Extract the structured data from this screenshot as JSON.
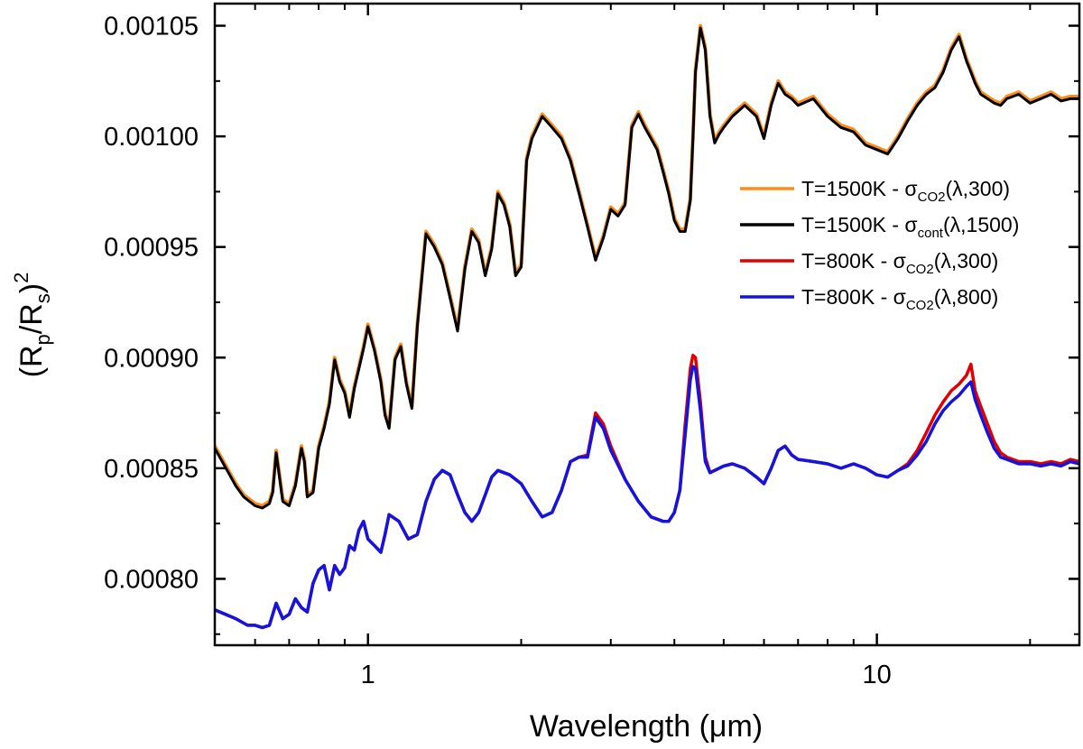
{
  "chart_data": {
    "type": "line",
    "xlabel": "Wavelength (μm)",
    "ylabel_parts": {
      "open": "(R",
      "sub1": "p",
      "mid": "/R",
      "sub2": "s",
      "close": ")",
      "sup": "2"
    },
    "x_scale": "log",
    "xlim": [
      0.5,
      25
    ],
    "ylim": [
      0.00077,
      0.00106
    ],
    "x_ticks": [
      1,
      10
    ],
    "x_tick_labels": [
      "1",
      "10"
    ],
    "y_ticks": [
      0.0008,
      0.00085,
      0.0009,
      0.00095,
      0.001,
      0.00105
    ],
    "y_tick_labels": [
      "0.00080",
      "0.00085",
      "0.00090",
      "0.00095",
      "0.00100",
      "0.00105"
    ],
    "grid": false,
    "legend_position": "right",
    "series": [
      {
        "name": "T=1500K - σCO2(λ,300)",
        "legend": {
          "pre": "T=1500K - σ",
          "sub": "CO2",
          "post": "(λ,300)"
        },
        "color": "#ff8c1a",
        "x": [
          0.5,
          0.55,
          0.57,
          0.6,
          0.62,
          0.64,
          0.65,
          0.66,
          0.68,
          0.7,
          0.72,
          0.74,
          0.75,
          0.76,
          0.78,
          0.8,
          0.82,
          0.84,
          0.86,
          0.88,
          0.9,
          0.92,
          0.94,
          0.96,
          0.98,
          1.0,
          1.03,
          1.06,
          1.08,
          1.1,
          1.13,
          1.16,
          1.19,
          1.22,
          1.25,
          1.3,
          1.35,
          1.4,
          1.45,
          1.5,
          1.55,
          1.6,
          1.65,
          1.7,
          1.75,
          1.8,
          1.85,
          1.9,
          1.95,
          2.0,
          2.05,
          2.1,
          2.2,
          2.3,
          2.4,
          2.5,
          2.6,
          2.7,
          2.8,
          2.9,
          3.0,
          3.1,
          3.2,
          3.3,
          3.4,
          3.5,
          3.6,
          3.7,
          3.8,
          3.9,
          4.0,
          4.1,
          4.2,
          4.3,
          4.35,
          4.4,
          4.5,
          4.6,
          4.7,
          4.8,
          4.9,
          5.0,
          5.2,
          5.5,
          5.8,
          6.0,
          6.2,
          6.4,
          6.6,
          6.8,
          7.0,
          7.5,
          8.0,
          8.5,
          9.0,
          9.5,
          10.0,
          10.5,
          11.0,
          11.5,
          12.0,
          12.5,
          13.0,
          13.5,
          14.0,
          14.5,
          15.0,
          15.3,
          15.6,
          16.0,
          16.5,
          17.0,
          17.5,
          18.0,
          19.0,
          20.0,
          21.0,
          22.0,
          23.0,
          24.0,
          25.0
        ],
        "y": [
          0.00086,
          0.000843,
          0.000838,
          0.000834,
          0.000833,
          0.000835,
          0.00084,
          0.000858,
          0.000836,
          0.000834,
          0.000843,
          0.00086,
          0.000854,
          0.000838,
          0.00084,
          0.00086,
          0.000869,
          0.00088,
          0.0009,
          0.00089,
          0.000885,
          0.000874,
          0.000887,
          0.000896,
          0.000905,
          0.000915,
          0.000904,
          0.00089,
          0.000875,
          0.000869,
          0.0009,
          0.000906,
          0.000889,
          0.000878,
          0.000915,
          0.000957,
          0.000951,
          0.000943,
          0.000928,
          0.000913,
          0.000941,
          0.000958,
          0.000953,
          0.000938,
          0.00095,
          0.000975,
          0.00097,
          0.00096,
          0.000938,
          0.000942,
          0.00099,
          0.001,
          0.00101,
          0.001005,
          0.001,
          0.00099,
          0.000975,
          0.00096,
          0.000945,
          0.000955,
          0.000968,
          0.000965,
          0.00097,
          0.001005,
          0.001011,
          0.001005,
          0.001,
          0.000995,
          0.000985,
          0.000975,
          0.000963,
          0.000958,
          0.000958,
          0.000972,
          0.001,
          0.00103,
          0.00105,
          0.00104,
          0.00101,
          0.000998,
          0.001002,
          0.001005,
          0.00101,
          0.001015,
          0.00101,
          0.001,
          0.001015,
          0.001025,
          0.00102,
          0.001018,
          0.001015,
          0.001018,
          0.00101,
          0.001005,
          0.001003,
          0.000997,
          0.000995,
          0.000993,
          0.001,
          0.001008,
          0.001015,
          0.00102,
          0.001023,
          0.00103,
          0.00104,
          0.001046,
          0.001035,
          0.00103,
          0.001025,
          0.00102,
          0.001018,
          0.001016,
          0.001015,
          0.001018,
          0.00102,
          0.001016,
          0.001018,
          0.00102,
          0.001017,
          0.001018,
          0.001018
        ],
        "width": 4
      },
      {
        "name": "T=1500K - σcont(λ,1500)",
        "legend": {
          "pre": "T=1500K - σ",
          "sub": "cont",
          "post": "(λ,1500)"
        },
        "color": "#000000",
        "x": [
          0.5,
          0.55,
          0.57,
          0.6,
          0.62,
          0.64,
          0.65,
          0.66,
          0.68,
          0.7,
          0.72,
          0.74,
          0.75,
          0.76,
          0.78,
          0.8,
          0.82,
          0.84,
          0.86,
          0.88,
          0.9,
          0.92,
          0.94,
          0.96,
          0.98,
          1.0,
          1.03,
          1.06,
          1.08,
          1.1,
          1.13,
          1.16,
          1.19,
          1.22,
          1.25,
          1.3,
          1.35,
          1.4,
          1.45,
          1.5,
          1.55,
          1.6,
          1.65,
          1.7,
          1.75,
          1.8,
          1.85,
          1.9,
          1.95,
          2.0,
          2.05,
          2.1,
          2.2,
          2.3,
          2.4,
          2.5,
          2.6,
          2.7,
          2.8,
          2.9,
          3.0,
          3.1,
          3.2,
          3.3,
          3.4,
          3.5,
          3.6,
          3.7,
          3.8,
          3.9,
          4.0,
          4.1,
          4.2,
          4.3,
          4.35,
          4.4,
          4.5,
          4.6,
          4.7,
          4.8,
          4.9,
          5.0,
          5.2,
          5.5,
          5.8,
          6.0,
          6.2,
          6.4,
          6.6,
          6.8,
          7.0,
          7.5,
          8.0,
          8.5,
          9.0,
          9.5,
          10.0,
          10.5,
          11.0,
          11.5,
          12.0,
          12.5,
          13.0,
          13.5,
          14.0,
          14.5,
          15.0,
          15.3,
          15.6,
          16.0,
          16.5,
          17.0,
          17.5,
          18.0,
          19.0,
          20.0,
          21.0,
          22.0,
          23.0,
          24.0,
          25.0
        ],
        "y": [
          0.000859,
          0.000842,
          0.000837,
          0.000833,
          0.000832,
          0.000834,
          0.000839,
          0.000857,
          0.000835,
          0.000833,
          0.000842,
          0.000859,
          0.000853,
          0.000837,
          0.000839,
          0.000859,
          0.000868,
          0.000879,
          0.000899,
          0.000889,
          0.000884,
          0.000873,
          0.000886,
          0.000895,
          0.000904,
          0.000914,
          0.000903,
          0.000889,
          0.000874,
          0.000868,
          0.000899,
          0.000905,
          0.000888,
          0.000877,
          0.000914,
          0.000956,
          0.00095,
          0.000942,
          0.000927,
          0.000912,
          0.00094,
          0.000957,
          0.000952,
          0.000937,
          0.000949,
          0.000974,
          0.000969,
          0.000959,
          0.000937,
          0.000941,
          0.000989,
          0.000999,
          0.001009,
          0.001004,
          0.000999,
          0.000989,
          0.000974,
          0.000959,
          0.000944,
          0.000954,
          0.000967,
          0.000964,
          0.000969,
          0.001004,
          0.00101,
          0.001004,
          0.000999,
          0.000994,
          0.000984,
          0.000974,
          0.000962,
          0.000957,
          0.000957,
          0.000971,
          0.000999,
          0.001029,
          0.001049,
          0.001039,
          0.001009,
          0.000997,
          0.001001,
          0.001004,
          0.001009,
          0.001014,
          0.001009,
          0.000999,
          0.001014,
          0.001024,
          0.001019,
          0.001017,
          0.001014,
          0.001017,
          0.001009,
          0.001004,
          0.001002,
          0.000996,
          0.000994,
          0.000992,
          0.000999,
          0.001007,
          0.001014,
          0.001019,
          0.001022,
          0.001029,
          0.001039,
          0.001045,
          0.001034,
          0.001029,
          0.001024,
          0.001019,
          0.001017,
          0.001015,
          0.001014,
          0.001017,
          0.001019,
          0.001015,
          0.001017,
          0.001019,
          0.001016,
          0.001017,
          0.001017
        ],
        "width": 3
      },
      {
        "name": "T=800K - σCO2(λ,300)",
        "legend": {
          "pre": "T=800K - σ",
          "sub": "CO2",
          "post": "(λ,300)"
        },
        "color": "#e00000",
        "x": [
          0.5,
          0.55,
          0.58,
          0.6,
          0.62,
          0.64,
          0.66,
          0.68,
          0.7,
          0.72,
          0.74,
          0.76,
          0.78,
          0.8,
          0.82,
          0.84,
          0.86,
          0.88,
          0.9,
          0.92,
          0.94,
          0.96,
          0.98,
          1.0,
          1.03,
          1.06,
          1.08,
          1.1,
          1.15,
          1.2,
          1.25,
          1.3,
          1.35,
          1.4,
          1.45,
          1.5,
          1.55,
          1.6,
          1.65,
          1.7,
          1.75,
          1.8,
          1.9,
          2.0,
          2.1,
          2.2,
          2.3,
          2.4,
          2.5,
          2.6,
          2.7,
          2.8,
          2.9,
          3.0,
          3.2,
          3.4,
          3.6,
          3.8,
          3.9,
          4.0,
          4.1,
          4.2,
          4.3,
          4.35,
          4.4,
          4.5,
          4.6,
          4.7,
          4.8,
          5.0,
          5.2,
          5.5,
          5.8,
          6.0,
          6.2,
          6.4,
          6.6,
          6.8,
          7.0,
          7.5,
          8.0,
          8.5,
          9.0,
          9.5,
          10.0,
          10.5,
          11.0,
          11.5,
          12.0,
          12.5,
          13.0,
          13.5,
          14.0,
          14.5,
          15.0,
          15.3,
          15.6,
          16.0,
          16.5,
          17.0,
          17.5,
          18.0,
          19.0,
          20.0,
          21.0,
          22.0,
          23.0,
          24.0,
          25.0
        ],
        "y": [
          0.000786,
          0.000782,
          0.000779,
          0.000779,
          0.000778,
          0.000779,
          0.000789,
          0.000782,
          0.000784,
          0.000791,
          0.000787,
          0.000785,
          0.000798,
          0.000804,
          0.000806,
          0.000795,
          0.000806,
          0.000802,
          0.000805,
          0.000815,
          0.000813,
          0.000822,
          0.000826,
          0.000818,
          0.000815,
          0.000812,
          0.00082,
          0.000829,
          0.000826,
          0.000818,
          0.00082,
          0.000835,
          0.000845,
          0.000849,
          0.000847,
          0.000838,
          0.00083,
          0.000826,
          0.00083,
          0.000838,
          0.000846,
          0.000849,
          0.000847,
          0.000843,
          0.000835,
          0.000828,
          0.00083,
          0.00084,
          0.000853,
          0.000855,
          0.000856,
          0.000875,
          0.00087,
          0.00086,
          0.000845,
          0.000835,
          0.000828,
          0.000826,
          0.000826,
          0.00083,
          0.00084,
          0.00087,
          0.000895,
          0.000901,
          0.0009,
          0.00088,
          0.000855,
          0.000848,
          0.000849,
          0.000851,
          0.000852,
          0.00085,
          0.000846,
          0.000843,
          0.00085,
          0.000858,
          0.00086,
          0.000856,
          0.000854,
          0.000853,
          0.000852,
          0.00085,
          0.000852,
          0.00085,
          0.000847,
          0.000846,
          0.000849,
          0.000852,
          0.000858,
          0.000866,
          0.000874,
          0.00088,
          0.000885,
          0.000888,
          0.000892,
          0.000897,
          0.000885,
          0.000878,
          0.00087,
          0.000862,
          0.000857,
          0.000855,
          0.000853,
          0.000853,
          0.000852,
          0.000853,
          0.000852,
          0.000854,
          0.000853
        ],
        "width": 3.5
      },
      {
        "name": "T=800K - σCO2(λ,800)",
        "legend": {
          "pre": "T=800K - σ",
          "sub": "CO2",
          "post": "(λ,800)"
        },
        "color": "#1414e0",
        "x": [
          0.5,
          0.55,
          0.58,
          0.6,
          0.62,
          0.64,
          0.66,
          0.68,
          0.7,
          0.72,
          0.74,
          0.76,
          0.78,
          0.8,
          0.82,
          0.84,
          0.86,
          0.88,
          0.9,
          0.92,
          0.94,
          0.96,
          0.98,
          1.0,
          1.03,
          1.06,
          1.08,
          1.1,
          1.15,
          1.2,
          1.25,
          1.3,
          1.35,
          1.4,
          1.45,
          1.5,
          1.55,
          1.6,
          1.65,
          1.7,
          1.75,
          1.8,
          1.9,
          2.0,
          2.1,
          2.2,
          2.3,
          2.4,
          2.5,
          2.6,
          2.7,
          2.8,
          2.9,
          3.0,
          3.2,
          3.4,
          3.6,
          3.8,
          3.9,
          4.0,
          4.1,
          4.2,
          4.3,
          4.35,
          4.4,
          4.5,
          4.6,
          4.7,
          4.8,
          5.0,
          5.2,
          5.5,
          5.8,
          6.0,
          6.2,
          6.4,
          6.6,
          6.8,
          7.0,
          7.5,
          8.0,
          8.5,
          9.0,
          9.5,
          10.0,
          10.5,
          11.0,
          11.5,
          12.0,
          12.5,
          13.0,
          13.5,
          14.0,
          14.5,
          15.0,
          15.3,
          15.6,
          16.0,
          16.5,
          17.0,
          17.5,
          18.0,
          19.0,
          20.0,
          21.0,
          22.0,
          23.0,
          24.0,
          25.0
        ],
        "y": [
          0.000786,
          0.000782,
          0.000779,
          0.000779,
          0.000778,
          0.000779,
          0.000789,
          0.000782,
          0.000784,
          0.000791,
          0.000787,
          0.000785,
          0.000798,
          0.000804,
          0.000806,
          0.000795,
          0.000806,
          0.000802,
          0.000805,
          0.000815,
          0.000813,
          0.000822,
          0.000826,
          0.000818,
          0.000815,
          0.000812,
          0.00082,
          0.000829,
          0.000826,
          0.000818,
          0.00082,
          0.000835,
          0.000845,
          0.000849,
          0.000847,
          0.000838,
          0.00083,
          0.000826,
          0.00083,
          0.000838,
          0.000846,
          0.000849,
          0.000847,
          0.000843,
          0.000835,
          0.000828,
          0.00083,
          0.00084,
          0.000853,
          0.000855,
          0.000855,
          0.000873,
          0.000868,
          0.000858,
          0.000845,
          0.000835,
          0.000828,
          0.000826,
          0.000826,
          0.00083,
          0.00084,
          0.000865,
          0.00089,
          0.000896,
          0.000895,
          0.000876,
          0.000853,
          0.000848,
          0.000849,
          0.000851,
          0.000852,
          0.00085,
          0.000846,
          0.000843,
          0.00085,
          0.000858,
          0.00086,
          0.000856,
          0.000854,
          0.000853,
          0.000852,
          0.00085,
          0.000852,
          0.00085,
          0.000847,
          0.000846,
          0.000849,
          0.000851,
          0.000856,
          0.000862,
          0.00087,
          0.000876,
          0.00088,
          0.000883,
          0.000887,
          0.000889,
          0.000881,
          0.000874,
          0.000866,
          0.000859,
          0.000855,
          0.000854,
          0.000852,
          0.000852,
          0.000851,
          0.000852,
          0.000851,
          0.000853,
          0.000852
        ],
        "width": 3.5
      }
    ]
  }
}
